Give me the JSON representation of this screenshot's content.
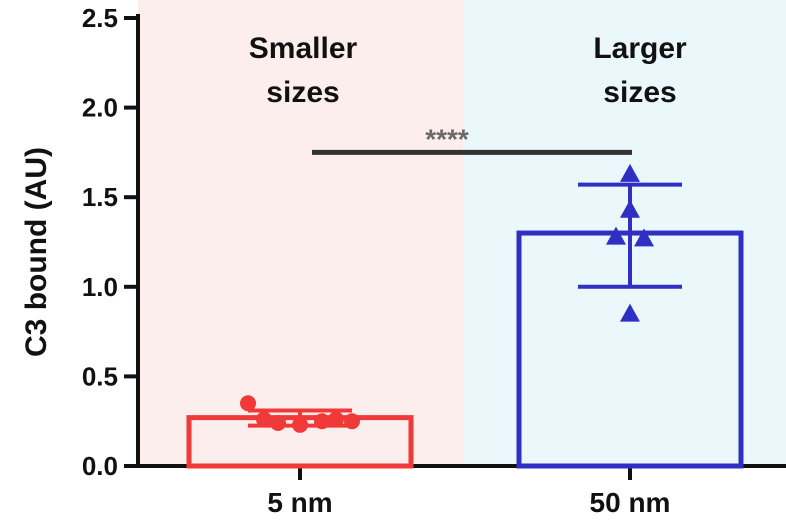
{
  "chart_data": {
    "type": "bar",
    "ylabel": "C3 bound (AU)",
    "ylim": [
      0,
      2.5
    ],
    "yticks": [
      "0.0",
      "0.5",
      "1.0",
      "1.5",
      "2.0",
      "2.5"
    ],
    "categories": [
      "5 nm",
      "50 nm"
    ],
    "bars": [
      {
        "category": "5 nm",
        "mean": 0.27,
        "sd_low": 0.225,
        "sd_high": 0.31,
        "color": "#f03a3a",
        "marker": "circle",
        "points": [
          0.35,
          0.26,
          0.24,
          0.23,
          0.25,
          0.26,
          0.25
        ]
      },
      {
        "category": "50 nm",
        "mean": 1.3,
        "sd_low": 1.0,
        "sd_high": 1.57,
        "color": "#2f2fc4",
        "marker": "triangle",
        "points": [
          1.63,
          1.43,
          1.28,
          1.27,
          0.85
        ]
      }
    ],
    "regions": [
      {
        "line1": "Smaller",
        "line2": "sizes",
        "color": "#fdeeee"
      },
      {
        "line1": "Larger",
        "line2": "sizes",
        "color": "#eaf8fc"
      }
    ],
    "significance": {
      "label": "****",
      "y": 1.75
    },
    "grid": false
  }
}
